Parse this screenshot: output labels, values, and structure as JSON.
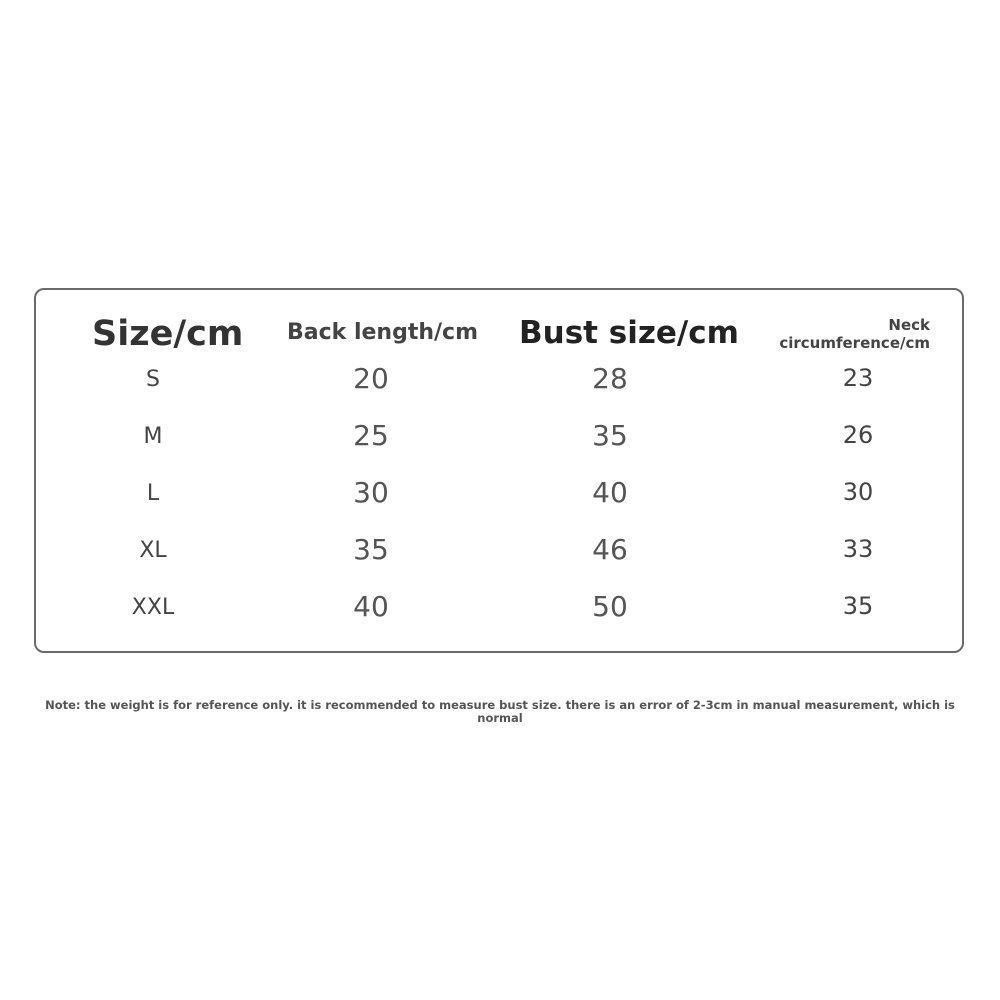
{
  "table": {
    "headers": [
      "Size/cm",
      "Back length/cm",
      "Bust size/cm",
      "Neck",
      "circumference/cm"
    ],
    "rows": [
      {
        "size": "S",
        "back": "20",
        "bust": "28",
        "neck": "23"
      },
      {
        "size": "M",
        "back": "25",
        "bust": "35",
        "neck": "26"
      },
      {
        "size": "L",
        "back": "30",
        "bust": "40",
        "neck": "30"
      },
      {
        "size": "XL",
        "back": "35",
        "bust": "46",
        "neck": "33"
      },
      {
        "size": "XXL",
        "back": "40",
        "bust": "50",
        "neck": "35"
      }
    ]
  },
  "note": "Note: the weight is for reference only. it is recommended to measure bust size. there is an error of 2-3cm in manual measurement, which is normal"
}
